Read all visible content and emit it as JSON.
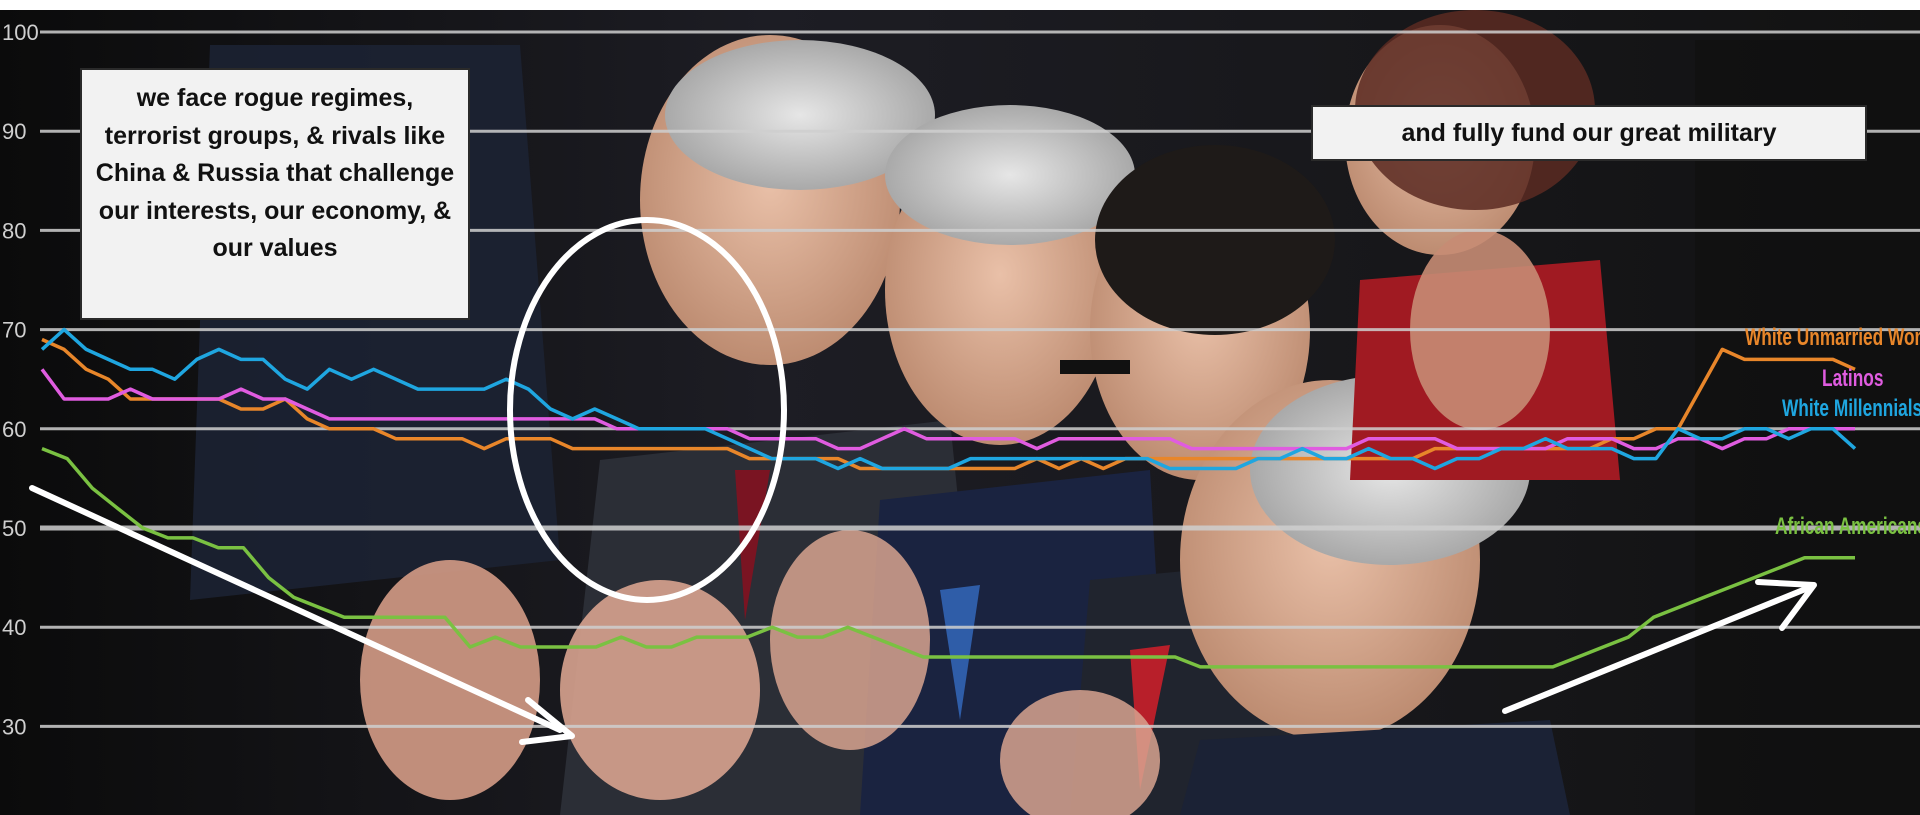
{
  "captions": {
    "left": "we face rogue regimes, terrorist groups, & rivals like China & Russia that challenge our interests, our economy, & our values",
    "right": "and fully fund our great military"
  },
  "chart_data": {
    "type": "line",
    "title": "",
    "xlabel": "",
    "ylabel": "",
    "ylim": [
      25,
      100
    ],
    "yticks": [
      30,
      40,
      50,
      60,
      70,
      80,
      90,
      100
    ],
    "grid": true,
    "legend": "direct labels at right end of lines",
    "background": "video frame of applauding audience members",
    "series": [
      {
        "name": "White Unmarried Women",
        "color": "#e8862a",
        "values": [
          69,
          68,
          66,
          65,
          63,
          63,
          63,
          63,
          63,
          62,
          62,
          63,
          61,
          60,
          60,
          60,
          59,
          59,
          59,
          59,
          58,
          59,
          59,
          59,
          58,
          58,
          58,
          58,
          58,
          58,
          58,
          58,
          57,
          57,
          57,
          57,
          57,
          56,
          56,
          56,
          56,
          56,
          56,
          56,
          56,
          57,
          56,
          57,
          56,
          57,
          57,
          57,
          57,
          57,
          57,
          57,
          57,
          57,
          57,
          57,
          57,
          57,
          57,
          58,
          58,
          58,
          58,
          58,
          58,
          58,
          58,
          59,
          59,
          60,
          60,
          64,
          68,
          67,
          67,
          67,
          67,
          67,
          66
        ]
      },
      {
        "name": "Latinos",
        "color": "#e05ce0",
        "values": [
          66,
          63,
          63,
          63,
          64,
          63,
          63,
          63,
          63,
          64,
          63,
          63,
          62,
          61,
          61,
          61,
          61,
          61,
          61,
          61,
          61,
          61,
          61,
          61,
          61,
          61,
          60,
          60,
          60,
          60,
          60,
          60,
          59,
          59,
          59,
          59,
          58,
          58,
          59,
          60,
          59,
          59,
          59,
          59,
          59,
          58,
          59,
          59,
          59,
          59,
          59,
          59,
          58,
          58,
          58,
          58,
          58,
          58,
          58,
          58,
          59,
          59,
          59,
          59,
          58,
          58,
          58,
          58,
          58,
          59,
          59,
          59,
          58,
          58,
          59,
          59,
          58,
          59,
          59,
          60,
          60,
          60,
          60
        ]
      },
      {
        "name": "White Millennials",
        "color": "#1fa6e0",
        "values": [
          68,
          70,
          68,
          67,
          66,
          66,
          65,
          67,
          68,
          67,
          67,
          65,
          64,
          66,
          65,
          66,
          65,
          64,
          64,
          64,
          64,
          65,
          64,
          62,
          61,
          62,
          61,
          60,
          60,
          60,
          60,
          59,
          58,
          57,
          57,
          57,
          56,
          57,
          56,
          56,
          56,
          56,
          57,
          57,
          57,
          57,
          57,
          57,
          57,
          57,
          57,
          56,
          56,
          56,
          56,
          57,
          57,
          58,
          57,
          57,
          58,
          57,
          57,
          56,
          57,
          57,
          58,
          58,
          59,
          58,
          58,
          58,
          57,
          57,
          60,
          59,
          59,
          60,
          60,
          59,
          60,
          60,
          58
        ]
      },
      {
        "name": "African Americans",
        "color": "#7ac142",
        "values": [
          58,
          57,
          54,
          52,
          50,
          49,
          49,
          48,
          48,
          45,
          43,
          42,
          41,
          41,
          41,
          41,
          41,
          38,
          39,
          38,
          38,
          38,
          38,
          39,
          38,
          38,
          39,
          39,
          39,
          40,
          39,
          39,
          40,
          39,
          38,
          37,
          37,
          37,
          37,
          37,
          37,
          37,
          37,
          37,
          37,
          37,
          36,
          36,
          36,
          36,
          36,
          36,
          36,
          36,
          36,
          36,
          36,
          36,
          36,
          36,
          36,
          37,
          38,
          39,
          41,
          42,
          43,
          44,
          45,
          46,
          47,
          47,
          47
        ]
      }
    ],
    "annotations": [
      "we face rogue regimes, terrorist groups, & rivals like China & Russia that challenge our interests, our economy, & our values",
      "and fully fund our great military"
    ]
  }
}
